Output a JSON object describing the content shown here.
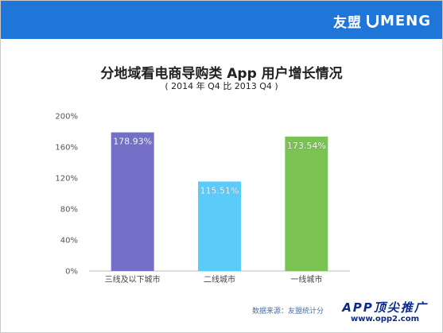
{
  "header": {
    "brand_cn": "友盟",
    "brand_en": "MENG",
    "bg_color": "#1f76d8"
  },
  "chart_data": {
    "type": "bar",
    "title": "分地域看电商导购类 App 用户增长情况",
    "subtitle": "( 2014 年  Q4 比 2013  Q4 )",
    "categories": [
      "三线及以下城市",
      "二线城市",
      "一线城市"
    ],
    "values": [
      178.93,
      115.51,
      173.54
    ],
    "data_labels": [
      "178.93%",
      "115.51%",
      "173.54%"
    ],
    "colors": [
      "#7470c8",
      "#5bcbfa",
      "#7ac252"
    ],
    "ylim": [
      0,
      200
    ],
    "yticks": [
      0,
      40,
      80,
      120,
      160,
      200
    ],
    "ytick_labels": [
      "0%",
      "40%",
      "80%",
      "120%",
      "160%",
      "200%"
    ],
    "grid": false,
    "xlabel": "",
    "ylabel": ""
  },
  "footer": {
    "source": "数据来源：友盟统计分",
    "watermark_line1": "APP顶尖推广",
    "watermark_line2": "www.opp2.com"
  }
}
